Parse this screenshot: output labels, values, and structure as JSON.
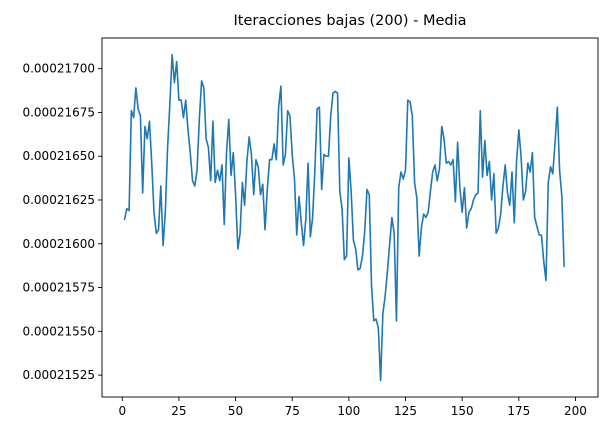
{
  "chart_data": {
    "type": "line",
    "title": "Iteracciones bajas (200) - Media",
    "xlabel": "",
    "ylabel": "",
    "xlim": [
      -8.95,
      209.95
    ],
    "ylim": [
      0.000215125,
      0.000217175
    ],
    "x_ticks": [
      0,
      25,
      50,
      75,
      100,
      125,
      150,
      175,
      200
    ],
    "x_tick_labels": [
      "0",
      "25",
      "50",
      "75",
      "100",
      "125",
      "150",
      "175",
      "200"
    ],
    "y_ticks": [
      0.00021525,
      0.0002155,
      0.00021575,
      0.000216,
      0.00021625,
      0.0002165,
      0.00021675,
      0.000217
    ],
    "y_tick_labels": [
      "0.00021525",
      "0.00021550",
      "0.00021575",
      "0.00021600",
      "0.00021625",
      "0.00021650",
      "0.00021675",
      "0.00021700"
    ],
    "grid": false,
    "line_color": "#1f77b4",
    "series": [
      {
        "x_start": 1,
        "x_step": 1,
        "values": [
          0.00021614,
          0.0002162,
          0.00021619,
          0.00021676,
          0.00021672,
          0.00021689,
          0.00021677,
          0.00021673,
          0.00021629,
          0.00021667,
          0.0002166,
          0.0002167,
          0.00021646,
          0.00021618,
          0.00021606,
          0.00021608,
          0.00021633,
          0.00021599,
          0.00021618,
          0.00021655,
          0.0002168,
          0.00021708,
          0.00021692,
          0.00021704,
          0.00021682,
          0.00021682,
          0.00021672,
          0.00021682,
          0.00021665,
          0.00021652,
          0.00021636,
          0.00021633,
          0.00021642,
          0.00021671,
          0.00021693,
          0.00021689,
          0.0002166,
          0.00021655,
          0.00021636,
          0.0002167,
          0.00021635,
          0.00021642,
          0.00021636,
          0.00021645,
          0.00021611,
          0.00021652,
          0.00021671,
          0.00021639,
          0.00021652,
          0.00021628,
          0.00021597,
          0.00021606,
          0.00021635,
          0.00021622,
          0.00021647,
          0.00021661,
          0.00021651,
          0.00021628,
          0.00021648,
          0.00021644,
          0.00021628,
          0.00021634,
          0.00021608,
          0.00021631,
          0.00021648,
          0.00021648,
          0.00021657,
          0.00021648,
          0.00021678,
          0.0002169,
          0.00021645,
          0.00021651,
          0.00021676,
          0.00021673,
          0.00021651,
          0.00021637,
          0.00021605,
          0.00021627,
          0.00021612,
          0.00021599,
          0.00021614,
          0.00021646,
          0.00021604,
          0.00021615,
          0.00021642,
          0.00021677,
          0.00021678,
          0.00021631,
          0.00021651,
          0.0002165,
          0.0002165,
          0.00021673,
          0.00021686,
          0.00021687,
          0.00021686,
          0.0002163,
          0.0002162,
          0.00021591,
          0.00021593,
          0.00021649,
          0.0002163,
          0.00021602,
          0.00021597,
          0.00021585,
          0.00021586,
          0.00021593,
          0.00021607,
          0.00021631,
          0.00021628,
          0.00021576,
          0.00021556,
          0.00021557,
          0.00021552,
          0.00021522,
          0.0002156,
          0.0002157,
          0.00021584,
          0.000216,
          0.00021615,
          0.00021606,
          0.00021556,
          0.00021632,
          0.00021641,
          0.00021637,
          0.00021642,
          0.00021682,
          0.00021681,
          0.00021673,
          0.00021635,
          0.00021626,
          0.00021593,
          0.00021609,
          0.00021617,
          0.00021615,
          0.00021618,
          0.0002163,
          0.00021641,
          0.00021645,
          0.00021636,
          0.00021643,
          0.00021667,
          0.0002166,
          0.00021646,
          0.00021647,
          0.00021645,
          0.00021648,
          0.00021624,
          0.00021658,
          0.00021632,
          0.00021618,
          0.00021632,
          0.00021609,
          0.00021618,
          0.0002162,
          0.00021625,
          0.00021628,
          0.00021629,
          0.00021676,
          0.00021638,
          0.00021659,
          0.00021639,
          0.00021647,
          0.00021625,
          0.0002164,
          0.00021606,
          0.00021609,
          0.00021617,
          0.00021633,
          0.00021645,
          0.00021629,
          0.00021622,
          0.00021641,
          0.00021612,
          0.00021647,
          0.00021665,
          0.0002165,
          0.00021625,
          0.0002163,
          0.00021646,
          0.00021641,
          0.00021652,
          0.00021615,
          0.0002161,
          0.00021605,
          0.00021605,
          0.0002159,
          0.00021579,
          0.00021635,
          0.00021644,
          0.0002164,
          0.00021658,
          0.00021678,
          0.00021642,
          0.00021627,
          0.00021587
        ]
      }
    ]
  }
}
